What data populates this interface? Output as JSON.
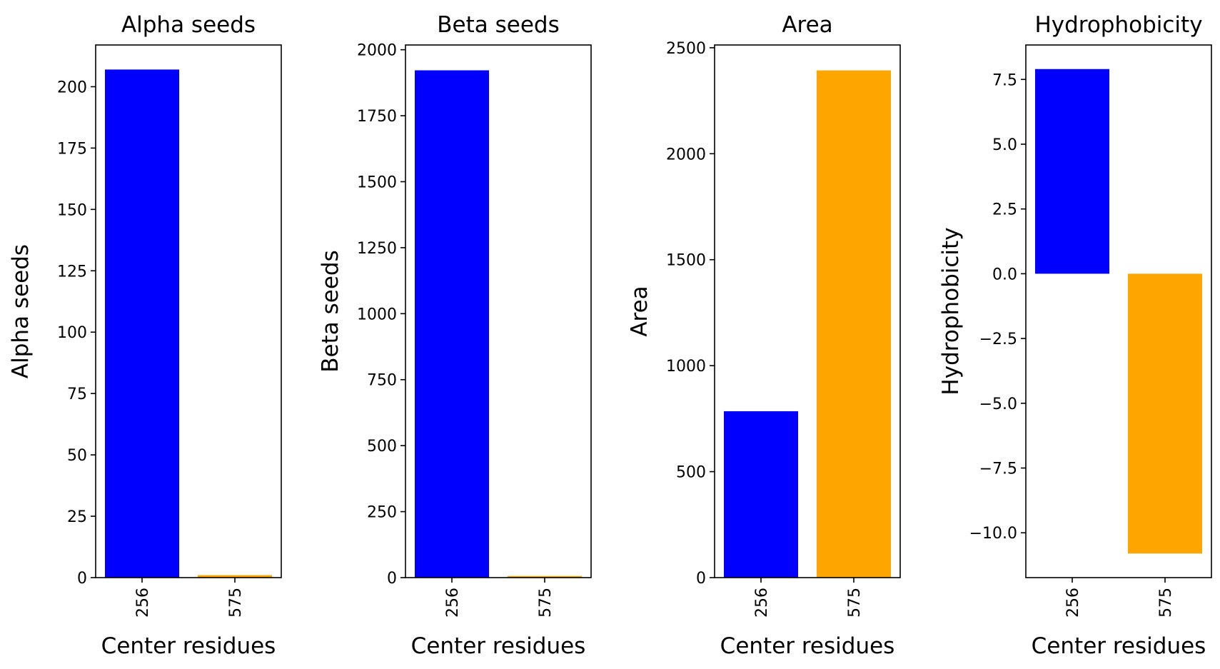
{
  "chart_data": [
    {
      "type": "bar",
      "title": "Alpha seeds",
      "xlabel": "Center residues",
      "ylabel": "Alpha seeds",
      "categories": [
        "256",
        "575"
      ],
      "values": [
        207,
        1
      ],
      "colors": [
        "#0000ff",
        "#ffa500"
      ],
      "ylim": [
        0,
        217
      ],
      "yticks": [
        0,
        25,
        50,
        75,
        100,
        125,
        150,
        175,
        200
      ],
      "ytick_labels": [
        "0",
        "25",
        "50",
        "75",
        "100",
        "125",
        "150",
        "175",
        "200"
      ],
      "grid": false
    },
    {
      "type": "bar",
      "title": "Beta seeds",
      "xlabel": "Center residues",
      "ylabel": "Beta seeds",
      "categories": [
        "256",
        "575"
      ],
      "values": [
        1922,
        6
      ],
      "colors": [
        "#0000ff",
        "#ffa500"
      ],
      "ylim": [
        0,
        2018
      ],
      "yticks": [
        0,
        250,
        500,
        750,
        1000,
        1250,
        1500,
        1750,
        2000
      ],
      "ytick_labels": [
        "0",
        "250",
        "500",
        "750",
        "1000",
        "1250",
        "1500",
        "1750",
        "2000"
      ],
      "grid": false
    },
    {
      "type": "bar",
      "title": "Area",
      "xlabel": "Center residues",
      "ylabel": "Area",
      "categories": [
        "256",
        "575"
      ],
      "values": [
        785,
        2393
      ],
      "colors": [
        "#0000ff",
        "#ffa500"
      ],
      "ylim": [
        0,
        2513
      ],
      "yticks": [
        0,
        500,
        1000,
        1500,
        2000,
        2500
      ],
      "ytick_labels": [
        "0",
        "500",
        "1000",
        "1500",
        "2000",
        "2500"
      ],
      "grid": false
    },
    {
      "type": "bar",
      "title": "Hydrophobicity",
      "xlabel": "Center residues",
      "ylabel": "Hydrophobicity",
      "categories": [
        "256",
        "575"
      ],
      "values": [
        7.9,
        -10.8
      ],
      "colors": [
        "#0000ff",
        "#ffa500"
      ],
      "ylim": [
        -11.73,
        8.83
      ],
      "yticks": [
        -10.0,
        -7.5,
        -5.0,
        -2.5,
        0.0,
        2.5,
        5.0,
        7.5
      ],
      "ytick_labels": [
        "−10.0",
        "−7.5",
        "−5.0",
        "−2.5",
        "0.0",
        "2.5",
        "5.0",
        "7.5"
      ],
      "grid": false
    }
  ]
}
